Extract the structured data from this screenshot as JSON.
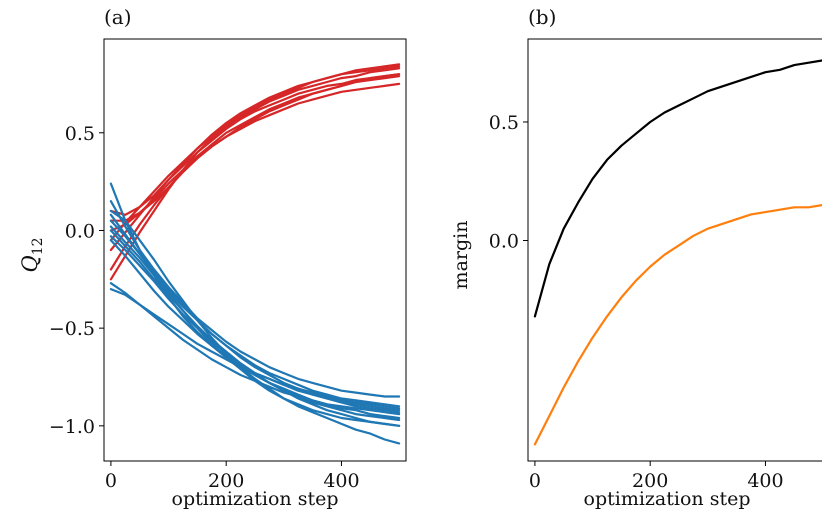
{
  "colors": {
    "red": "#d62728",
    "blue": "#1f77b4",
    "black": "#000000",
    "orange": "#ff7f0e"
  },
  "chart_data": [
    {
      "panel_label": "(a)",
      "type": "line",
      "xlabel": "optimization step",
      "ylabel": "Q",
      "ylabel_sub": "12",
      "xlim": [
        -12,
        512
      ],
      "ylim": [
        -1.18,
        0.98
      ],
      "xticks": [
        0,
        200,
        400
      ],
      "xtick_labels": [
        "0",
        "200",
        "400"
      ],
      "yticks": [
        0.5,
        0.0,
        -0.5,
        -1.0
      ],
      "ytick_labels": [
        "0.5",
        "0.0",
        "−0.5",
        "−1.0"
      ],
      "x": [
        0,
        25,
        50,
        75,
        100,
        125,
        150,
        175,
        200,
        225,
        250,
        275,
        300,
        325,
        350,
        375,
        400,
        425,
        450,
        475,
        500
      ],
      "series": [
        {
          "color": "red",
          "values": [
            -0.25,
            -0.13,
            -0.01,
            0.1,
            0.21,
            0.31,
            0.4,
            0.47,
            0.53,
            0.58,
            0.62,
            0.66,
            0.69,
            0.72,
            0.74,
            0.76,
            0.78,
            0.79,
            0.81,
            0.82,
            0.83
          ]
        },
        {
          "color": "red",
          "values": [
            -0.1,
            -0.01,
            0.08,
            0.17,
            0.26,
            0.34,
            0.42,
            0.48,
            0.54,
            0.59,
            0.63,
            0.67,
            0.7,
            0.73,
            0.76,
            0.78,
            0.8,
            0.82,
            0.83,
            0.84,
            0.85
          ]
        },
        {
          "color": "red",
          "values": [
            0.05,
            0.05,
            0.09,
            0.15,
            0.22,
            0.3,
            0.37,
            0.43,
            0.48,
            0.53,
            0.57,
            0.61,
            0.64,
            0.67,
            0.7,
            0.72,
            0.74,
            0.76,
            0.78,
            0.79,
            0.8
          ]
        },
        {
          "color": "red",
          "values": [
            0.0,
            0.03,
            0.09,
            0.16,
            0.24,
            0.31,
            0.38,
            0.44,
            0.5,
            0.54,
            0.58,
            0.62,
            0.65,
            0.68,
            0.7,
            0.72,
            0.74,
            0.76,
            0.77,
            0.78,
            0.79
          ]
        },
        {
          "color": "red",
          "values": [
            -0.2,
            -0.08,
            0.03,
            0.13,
            0.22,
            0.3,
            0.37,
            0.43,
            0.48,
            0.52,
            0.56,
            0.59,
            0.62,
            0.65,
            0.67,
            0.69,
            0.71,
            0.72,
            0.73,
            0.74,
            0.75
          ]
        },
        {
          "color": "red",
          "values": [
            -0.05,
            0.04,
            0.12,
            0.2,
            0.28,
            0.35,
            0.42,
            0.49,
            0.55,
            0.6,
            0.64,
            0.68,
            0.71,
            0.74,
            0.76,
            0.78,
            0.8,
            0.81,
            0.82,
            0.83,
            0.84
          ]
        },
        {
          "color": "red",
          "values": [
            0.1,
            0.08,
            0.12,
            0.18,
            0.26,
            0.33,
            0.4,
            0.46,
            0.52,
            0.57,
            0.61,
            0.64,
            0.67,
            0.7,
            0.72,
            0.74,
            0.75,
            0.77,
            0.78,
            0.79,
            0.8
          ]
        },
        {
          "color": "blue",
          "values": [
            0.24,
            0.05,
            -0.1,
            -0.23,
            -0.34,
            -0.44,
            -0.52,
            -0.59,
            -0.65,
            -0.7,
            -0.74,
            -0.78,
            -0.81,
            -0.84,
            -0.87,
            -0.89,
            -0.91,
            -0.92,
            -0.94,
            -0.95,
            -0.96
          ]
        },
        {
          "color": "blue",
          "values": [
            0.15,
            0.02,
            -0.1,
            -0.2,
            -0.29,
            -0.37,
            -0.45,
            -0.51,
            -0.57,
            -0.62,
            -0.66,
            -0.7,
            -0.73,
            -0.76,
            -0.78,
            -0.8,
            -0.82,
            -0.83,
            -0.84,
            -0.85,
            -0.85
          ]
        },
        {
          "color": "blue",
          "values": [
            0.1,
            0.05,
            -0.05,
            -0.15,
            -0.26,
            -0.36,
            -0.46,
            -0.55,
            -0.63,
            -0.7,
            -0.76,
            -0.81,
            -0.86,
            -0.9,
            -0.93,
            -0.96,
            -0.99,
            -1.02,
            -1.04,
            -1.07,
            -1.09
          ]
        },
        {
          "color": "blue",
          "values": [
            0.05,
            -0.03,
            -0.12,
            -0.21,
            -0.3,
            -0.38,
            -0.46,
            -0.53,
            -0.59,
            -0.65,
            -0.7,
            -0.74,
            -0.78,
            -0.81,
            -0.84,
            -0.86,
            -0.88,
            -0.9,
            -0.91,
            -0.92,
            -0.93
          ]
        },
        {
          "color": "blue",
          "values": [
            0.0,
            -0.08,
            -0.16,
            -0.25,
            -0.33,
            -0.41,
            -0.49,
            -0.56,
            -0.62,
            -0.68,
            -0.73,
            -0.78,
            -0.82,
            -0.86,
            -0.89,
            -0.92,
            -0.94,
            -0.96,
            -0.98,
            -0.99,
            -1.0
          ]
        },
        {
          "color": "blue",
          "values": [
            -0.03,
            -0.1,
            -0.18,
            -0.26,
            -0.35,
            -0.43,
            -0.5,
            -0.57,
            -0.63,
            -0.69,
            -0.74,
            -0.78,
            -0.82,
            -0.85,
            -0.88,
            -0.9,
            -0.92,
            -0.94,
            -0.95,
            -0.96,
            -0.97
          ]
        },
        {
          "color": "blue",
          "values": [
            -0.27,
            -0.32,
            -0.38,
            -0.44,
            -0.5,
            -0.56,
            -0.61,
            -0.66,
            -0.7,
            -0.74,
            -0.77,
            -0.8,
            -0.83,
            -0.85,
            -0.87,
            -0.89,
            -0.9,
            -0.91,
            -0.92,
            -0.93,
            -0.94
          ]
        },
        {
          "color": "blue",
          "values": [
            -0.3,
            -0.33,
            -0.38,
            -0.43,
            -0.48,
            -0.53,
            -0.58,
            -0.62,
            -0.66,
            -0.7,
            -0.73,
            -0.76,
            -0.79,
            -0.81,
            -0.83,
            -0.85,
            -0.87,
            -0.88,
            -0.89,
            -0.9,
            -0.91
          ]
        },
        {
          "color": "blue",
          "values": [
            -0.05,
            -0.13,
            -0.22,
            -0.31,
            -0.39,
            -0.46,
            -0.53,
            -0.59,
            -0.64,
            -0.69,
            -0.73,
            -0.76,
            -0.79,
            -0.82,
            -0.84,
            -0.86,
            -0.88,
            -0.89,
            -0.9,
            -0.91,
            -0.92
          ]
        },
        {
          "color": "blue",
          "values": [
            0.08,
            -0.02,
            -0.12,
            -0.22,
            -0.32,
            -0.41,
            -0.5,
            -0.58,
            -0.65,
            -0.71,
            -0.77,
            -0.82,
            -0.86,
            -0.89,
            -0.92,
            -0.94,
            -0.96,
            -0.97,
            -0.98,
            -0.99,
            -1.0
          ]
        },
        {
          "color": "blue",
          "values": [
            0.02,
            -0.06,
            -0.14,
            -0.23,
            -0.31,
            -0.39,
            -0.46,
            -0.53,
            -0.59,
            -0.64,
            -0.69,
            -0.73,
            -0.76,
            -0.79,
            -0.82,
            -0.84,
            -0.86,
            -0.87,
            -0.88,
            -0.89,
            -0.9
          ]
        }
      ]
    },
    {
      "panel_label": "(b)",
      "type": "line",
      "xlabel": "optimization step",
      "ylabel": "margin",
      "xlim": [
        -12,
        512
      ],
      "ylim": [
        -0.93,
        0.85
      ],
      "xticks": [
        0,
        200,
        400
      ],
      "xtick_labels": [
        "0",
        "200",
        "400"
      ],
      "yticks": [
        0.5,
        0.0
      ],
      "ytick_labels": [
        "0.5",
        "0.0"
      ],
      "x": [
        0,
        25,
        50,
        75,
        100,
        125,
        150,
        175,
        200,
        225,
        250,
        275,
        300,
        325,
        350,
        375,
        400,
        425,
        450,
        475,
        500
      ],
      "series": [
        {
          "color": "black",
          "values": [
            -0.32,
            -0.1,
            0.05,
            0.16,
            0.26,
            0.34,
            0.4,
            0.45,
            0.5,
            0.54,
            0.57,
            0.6,
            0.63,
            0.65,
            0.67,
            0.69,
            0.71,
            0.72,
            0.74,
            0.75,
            0.76
          ]
        },
        {
          "color": "orange",
          "values": [
            -0.86,
            -0.74,
            -0.62,
            -0.51,
            -0.41,
            -0.32,
            -0.24,
            -0.17,
            -0.11,
            -0.06,
            -0.02,
            0.02,
            0.05,
            0.07,
            0.09,
            0.11,
            0.12,
            0.13,
            0.14,
            0.14,
            0.15
          ]
        }
      ]
    }
  ]
}
